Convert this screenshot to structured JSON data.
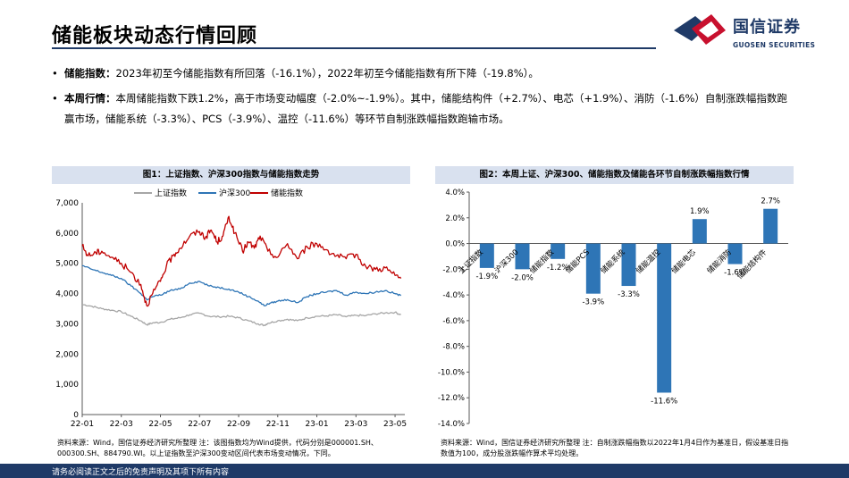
{
  "header": {
    "title": "储能板块动态行情回顾",
    "logo_cn": "国信证券",
    "logo_en": "GUOSEN SECURITIES",
    "brand_color": "#1f3a67",
    "logo_red": "#c8102e"
  },
  "bullets": [
    {
      "label": "储能指数：",
      "text": "2023年初至今储能指数有所回落（-16.1%），2022年初至今储能指数有所下降（-19.8%）。"
    },
    {
      "label": "本周行情：",
      "text": "本周储能指数下跌1.2%，高于市场变动幅度（-2.0%~-1.9%）。其中，储能结构件（+2.7%）、电芯（+1.9%）、消防（-1.6%）自制涨跌幅指数跑赢市场，储能系统（-3.3%）、PCS（-3.9%）、温控（-11.6%）等环节自制涨跌幅指数跑输市场。"
    }
  ],
  "chart1": {
    "title": "图1：上证指数、沪深300指数与储能指数走势",
    "source": "资料来源：Wind，国信证券经济研究所整理  注：该图指数均为Wind提供，代码分别是000001.SH、000300.SH、884790.WI。以上证指数至沪深300变动区间代表市场变动情况，下同。"
  },
  "chart2": {
    "title": "图2：本周上证、沪深300、储能指数及储能各环节自制涨跌幅指数行情",
    "source": "资料来源：Wind，国信证券经济研究所整理  注：自制涨跌幅指数以2022年1月4日作为基准日，假设基准日指数值为100，成分股涨跌幅作算术平均处理。"
  },
  "chart_data": [
    {
      "type": "line",
      "title": "图1：上证指数、沪深300指数与储能指数走势",
      "x_ticks": [
        "22-01",
        "22-03",
        "22-05",
        "22-07",
        "22-09",
        "22-11",
        "23-01",
        "23-03",
        "23-05"
      ],
      "y_ticks": [
        "0",
        "1,000",
        "2,000",
        "3,000",
        "4,000",
        "5,000",
        "6,000",
        "7,000"
      ],
      "ylim": [
        0,
        7000
      ],
      "x_months": [
        0,
        16.5
      ],
      "series": [
        {
          "name": "上证指数",
          "color": "#a6a6a6",
          "points": [
            [
              0,
              3640
            ],
            [
              0.5,
              3580
            ],
            [
              1,
              3500
            ],
            [
              1.5,
              3450
            ],
            [
              2,
              3400
            ],
            [
              2.5,
              3250
            ],
            [
              3,
              3100
            ],
            [
              3.3,
              2970
            ],
            [
              3.6,
              3030
            ],
            [
              4,
              3050
            ],
            [
              4.5,
              3150
            ],
            [
              5,
              3200
            ],
            [
              5.5,
              3300
            ],
            [
              6,
              3350
            ],
            [
              6.5,
              3250
            ],
            [
              7,
              3230
            ],
            [
              7.5,
              3250
            ],
            [
              8,
              3200
            ],
            [
              8.5,
              3100
            ],
            [
              9,
              3000
            ],
            [
              9.3,
              2950
            ],
            [
              9.5,
              3020
            ],
            [
              10,
              3100
            ],
            [
              10.5,
              3150
            ],
            [
              11,
              3100
            ],
            [
              11.5,
              3200
            ],
            [
              12,
              3250
            ],
            [
              12.5,
              3260
            ],
            [
              13,
              3300
            ],
            [
              13.5,
              3230
            ],
            [
              14,
              3280
            ],
            [
              14.5,
              3270
            ],
            [
              15,
              3330
            ],
            [
              15.5,
              3360
            ],
            [
              16,
              3380
            ],
            [
              16.3,
              3300
            ]
          ]
        },
        {
          "name": "沪深300",
          "color": "#2e75b6",
          "points": [
            [
              0,
              4920
            ],
            [
              0.5,
              4800
            ],
            [
              1,
              4700
            ],
            [
              1.5,
              4600
            ],
            [
              2,
              4500
            ],
            [
              2.5,
              4250
            ],
            [
              3,
              4000
            ],
            [
              3.3,
              3800
            ],
            [
              3.6,
              3900
            ],
            [
              4,
              3950
            ],
            [
              4.5,
              4100
            ],
            [
              5,
              4150
            ],
            [
              5.5,
              4350
            ],
            [
              6,
              4400
            ],
            [
              6.5,
              4250
            ],
            [
              7,
              4200
            ],
            [
              7.5,
              4150
            ],
            [
              8,
              4050
            ],
            [
              8.5,
              3900
            ],
            [
              9,
              3750
            ],
            [
              9.3,
              3600
            ],
            [
              9.6,
              3680
            ],
            [
              10,
              3750
            ],
            [
              10.5,
              3800
            ],
            [
              11,
              3700
            ],
            [
              11.5,
              3900
            ],
            [
              12,
              4000
            ],
            [
              12.5,
              4050
            ],
            [
              13,
              4100
            ],
            [
              13.5,
              3950
            ],
            [
              14,
              4050
            ],
            [
              14.5,
              4000
            ],
            [
              15,
              4050
            ],
            [
              15.5,
              4100
            ],
            [
              16,
              4000
            ],
            [
              16.3,
              3930
            ]
          ]
        },
        {
          "name": "储能指数",
          "color": "#c00000",
          "points": [
            [
              0,
              5570
            ],
            [
              0.3,
              5250
            ],
            [
              0.7,
              5350
            ],
            [
              1,
              5400
            ],
            [
              1.5,
              5200
            ],
            [
              2,
              5000
            ],
            [
              2.5,
              4700
            ],
            [
              3,
              4300
            ],
            [
              3.3,
              3600
            ],
            [
              3.6,
              4000
            ],
            [
              4,
              4400
            ],
            [
              4.3,
              4900
            ],
            [
              4.7,
              5300
            ],
            [
              5,
              5500
            ],
            [
              5.5,
              5900
            ],
            [
              6,
              6050
            ],
            [
              6.3,
              5850
            ],
            [
              6.6,
              6100
            ],
            [
              6.9,
              5700
            ],
            [
              7.2,
              5900
            ],
            [
              7.5,
              6550
            ],
            [
              7.8,
              6000
            ],
            [
              8.2,
              5400
            ],
            [
              8.5,
              5700
            ],
            [
              8.8,
              5500
            ],
            [
              9.1,
              5900
            ],
            [
              9.5,
              5400
            ],
            [
              10,
              5200
            ],
            [
              10.5,
              5650
            ],
            [
              11,
              5150
            ],
            [
              11.5,
              5550
            ],
            [
              12,
              5650
            ],
            [
              12.5,
              5450
            ],
            [
              13,
              5250
            ],
            [
              13.5,
              5150
            ],
            [
              14,
              5300
            ],
            [
              14.5,
              4900
            ],
            [
              15,
              4800
            ],
            [
              15.5,
              4850
            ],
            [
              16,
              4600
            ],
            [
              16.3,
              4500
            ]
          ]
        }
      ]
    },
    {
      "type": "bar",
      "title": "图2：本周上证、沪深300、储能指数及储能各环节自制涨跌幅指数行情",
      "categories": [
        "上证指数",
        "沪深300",
        "储能指数",
        "储能PCS",
        "储能系统",
        "储能温控",
        "储能电芯",
        "储能消防",
        "储能结构件"
      ],
      "values": [
        -1.9,
        -2.0,
        -1.2,
        -3.9,
        -3.3,
        -11.6,
        1.9,
        -1.6,
        2.7
      ],
      "value_labels": [
        "-1.9%",
        "-2.0%",
        "-1.2%",
        "-3.9%",
        "-3.3%",
        "-11.6%",
        "1.9%",
        "-1.6%",
        "2.7%"
      ],
      "y_ticks": [
        "4.0%",
        "2.0%",
        "0.0%",
        "-2.0%",
        "-4.0%",
        "-6.0%",
        "-8.0%",
        "-10.0%",
        "-12.0%",
        "-14.0%"
      ],
      "ylim": [
        -14,
        4
      ],
      "bar_color": "#2e75b6"
    }
  ]
}
